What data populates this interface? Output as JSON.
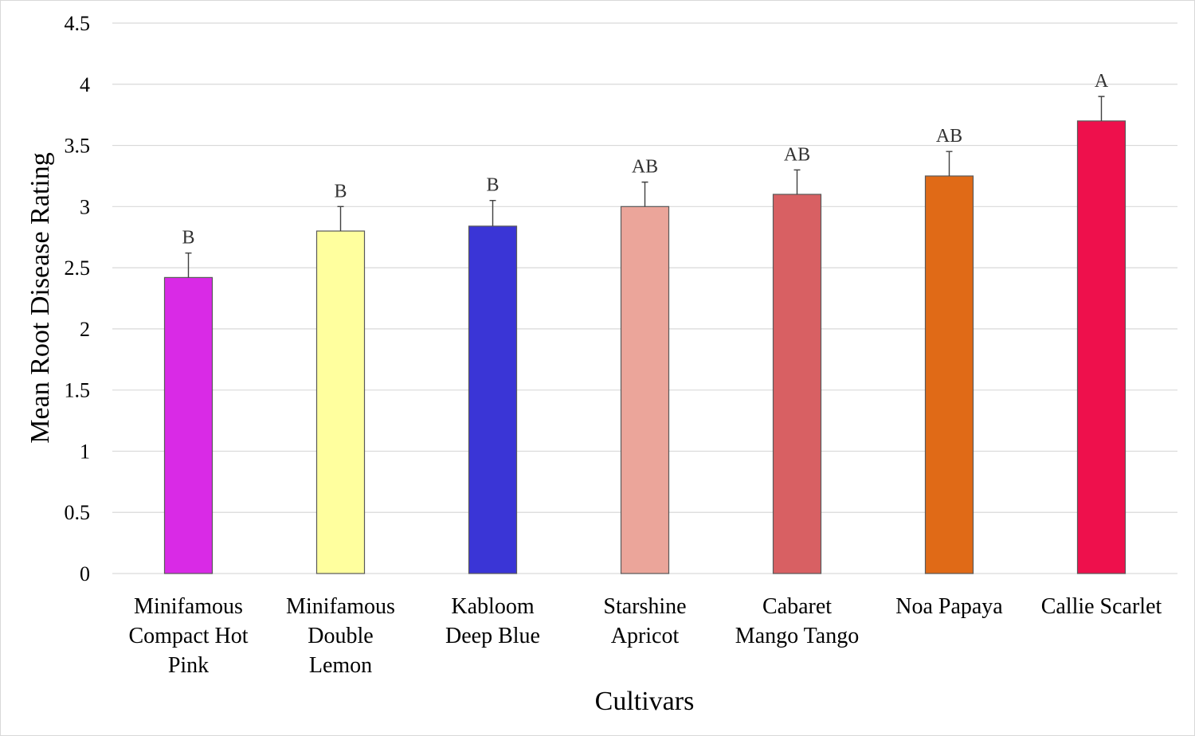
{
  "chart_data": {
    "type": "bar",
    "xlabel": "Cultivars",
    "ylabel": "Mean Root Disease Rating",
    "ylim": [
      0,
      4.5
    ],
    "yticks": [
      "0",
      "0.5",
      "1",
      "1.5",
      "2",
      "2.5",
      "3",
      "3.5",
      "4",
      "4.5"
    ],
    "grid": true,
    "legend": "none",
    "categories": [
      [
        "Minifamous",
        "Compact Hot",
        "Pink"
      ],
      [
        "Minifamous",
        "Double",
        "Lemon"
      ],
      [
        "Kabloom",
        "Deep Blue"
      ],
      [
        "Starshine",
        "Apricot"
      ],
      [
        "Cabaret",
        "Mango Tango"
      ],
      [
        "Noa Papaya"
      ],
      [
        "Callie Scarlet"
      ]
    ],
    "values": [
      2.42,
      2.8,
      2.84,
      3.0,
      3.1,
      3.25,
      3.7
    ],
    "errors": [
      0.2,
      0.2,
      0.21,
      0.2,
      0.2,
      0.2,
      0.2
    ],
    "significance_letters": [
      "B",
      "B",
      "B",
      "AB",
      "AB",
      "AB",
      "A"
    ],
    "colors": [
      "#d92ae6",
      "#ffff9e",
      "#3a35d6",
      "#eba59a",
      "#d86063",
      "#e06a17",
      "#ee104c"
    ]
  }
}
